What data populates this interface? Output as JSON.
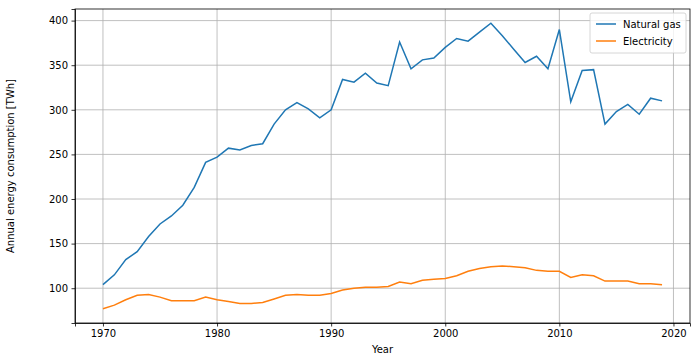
{
  "chart_data": {
    "type": "line",
    "x_label": "Year",
    "y_label": "Annual energy consumption [TWh]",
    "x": [
      1970,
      1971,
      1972,
      1973,
      1974,
      1975,
      1976,
      1977,
      1978,
      1979,
      1980,
      1981,
      1982,
      1983,
      1984,
      1985,
      1986,
      1987,
      1988,
      1989,
      1990,
      1991,
      1992,
      1993,
      1994,
      1995,
      1996,
      1997,
      1998,
      1999,
      2000,
      2001,
      2002,
      2003,
      2004,
      2005,
      2006,
      2007,
      2008,
      2009,
      2010,
      2011,
      2012,
      2013,
      2014,
      2015,
      2016,
      2017,
      2018,
      2019
    ],
    "series": [
      {
        "name": "Natural gas",
        "color": "#1f77b4",
        "values": [
          104,
          115,
          132,
          141,
          158,
          172,
          181,
          193,
          213,
          241,
          247,
          257,
          255,
          260,
          262,
          284,
          300,
          308,
          301,
          291,
          300,
          334,
          331,
          341,
          330,
          327,
          376,
          346,
          356,
          358,
          370,
          380,
          377,
          387,
          397,
          383,
          368,
          353,
          360,
          346,
          390,
          309,
          344,
          345,
          284,
          298,
          306,
          295,
          313,
          310
        ]
      },
      {
        "name": "Electricity",
        "color": "#ff7f0e",
        "values": [
          77,
          81,
          87,
          92,
          93,
          90,
          86,
          86,
          86,
          90,
          87,
          85,
          83,
          83,
          84,
          88,
          92,
          93,
          92,
          92,
          94,
          98,
          100,
          101,
          101,
          102,
          107,
          105,
          109,
          110,
          111,
          114,
          119,
          122,
          124,
          125,
          124,
          123,
          120,
          119,
          119,
          112,
          115,
          114,
          108,
          108,
          108,
          105,
          105,
          104
        ]
      }
    ],
    "xlim": [
      1967.55,
      2021.45
    ],
    "xticks": [
      1970,
      1980,
      1990,
      2000,
      2010,
      2020
    ],
    "ylim": [
      61,
      413
    ],
    "yticks": [
      100,
      150,
      200,
      250,
      300,
      350,
      400
    ],
    "grid": true,
    "legend": "upper right"
  }
}
